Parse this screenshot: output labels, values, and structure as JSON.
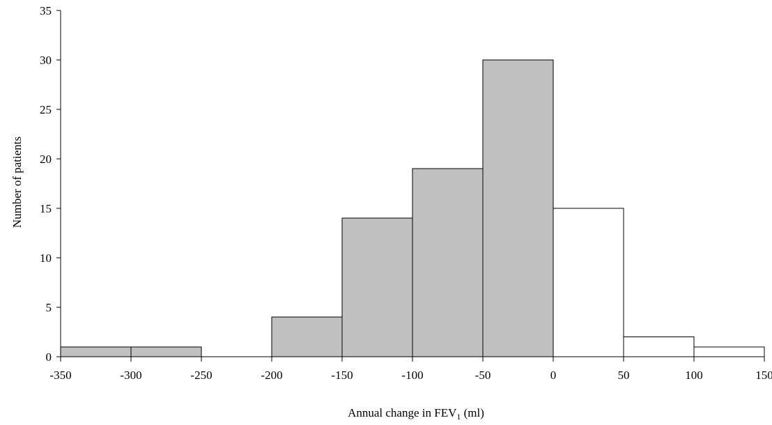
{
  "chart_data": {
    "type": "bar",
    "title": "",
    "xlabel_main": "Annual change in FEV",
    "xlabel_sub": "1",
    "xlabel_unit": " (ml)",
    "ylabel": "Number of patients",
    "xlim": [
      -350,
      150
    ],
    "ylim": [
      0,
      35
    ],
    "x_ticks": [
      "-350",
      "-300",
      "-250",
      "-200",
      "-150",
      "-100",
      "-50",
      "0",
      "50",
      "100",
      "150"
    ],
    "y_ticks": [
      "0",
      "5",
      "10",
      "15",
      "20",
      "25",
      "30",
      "35"
    ],
    "grid": false,
    "legend": "none",
    "bins": [
      {
        "from": -350,
        "to": -300,
        "value": 1,
        "shaded": true
      },
      {
        "from": -300,
        "to": -250,
        "value": 1,
        "shaded": true
      },
      {
        "from": -250,
        "to": -200,
        "value": 0,
        "shaded": true
      },
      {
        "from": -200,
        "to": -150,
        "value": 4,
        "shaded": true
      },
      {
        "from": -150,
        "to": -100,
        "value": 14,
        "shaded": true
      },
      {
        "from": -100,
        "to": -50,
        "value": 19,
        "shaded": true
      },
      {
        "from": -50,
        "to": 0,
        "value": 30,
        "shaded": true
      },
      {
        "from": 0,
        "to": 50,
        "value": 15,
        "shaded": false
      },
      {
        "from": 50,
        "to": 100,
        "value": 2,
        "shaded": false
      },
      {
        "from": 100,
        "to": 150,
        "value": 1,
        "shaded": false
      }
    ],
    "colors": {
      "shaded": "#c0c0c0",
      "unshaded": "#ffffff",
      "stroke": "#000000"
    }
  }
}
